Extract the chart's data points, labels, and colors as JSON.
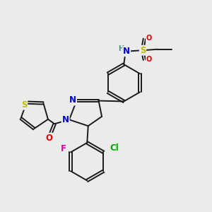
{
  "bg_color": "#ebebeb",
  "bond_color": "#1a1a1a",
  "bond_width": 1.4,
  "atom_colors": {
    "N": "#0000dd",
    "O": "#dd0000",
    "S": "#bbbb00",
    "Cl": "#00aa00",
    "F": "#dd00aa",
    "H": "#4a9090",
    "C": "#1a1a1a"
  },
  "font_size_atom": 8.5,
  "font_size_small": 7.0
}
